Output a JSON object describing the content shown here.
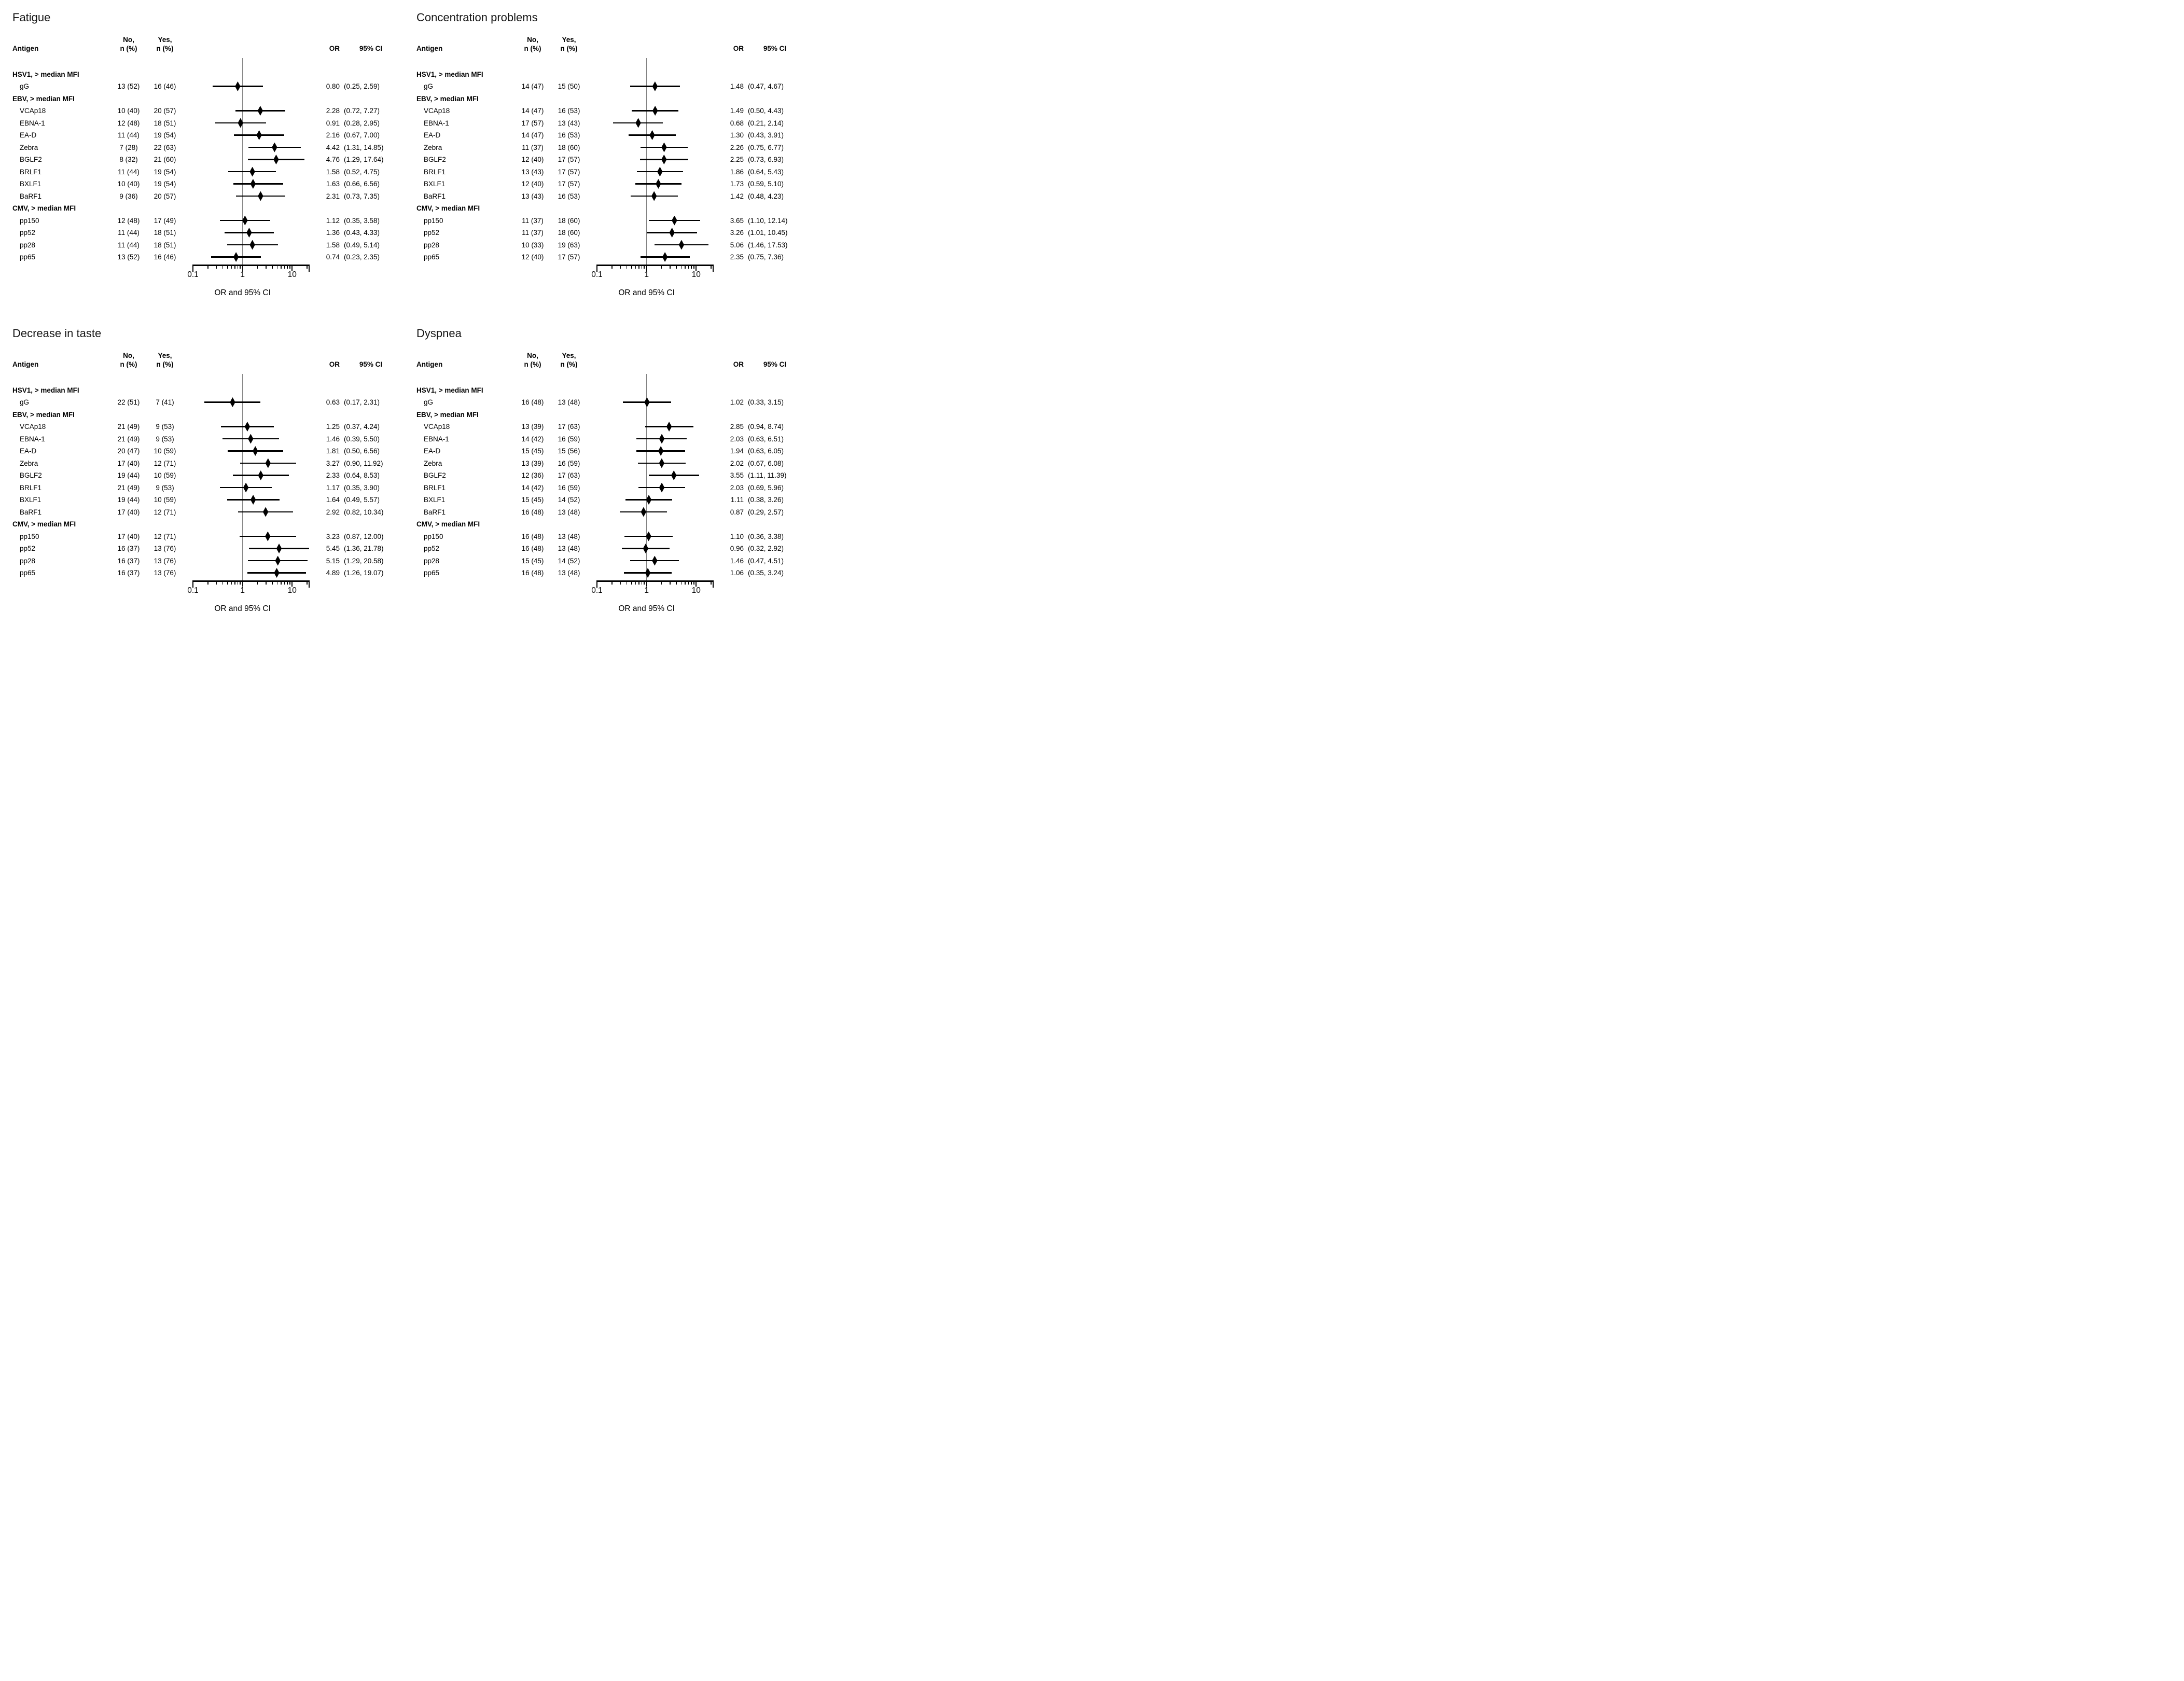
{
  "chart_data": {
    "type": "forest",
    "x_axis": {
      "label": "OR and 95% CI",
      "scale": "log",
      "tick_values": [
        0.1,
        1,
        10
      ],
      "tick_labels": [
        "0.1",
        "1",
        "10"
      ],
      "minor_ticks": [
        0.2,
        0.3,
        0.4,
        0.5,
        0.6,
        0.7,
        0.8,
        0.9,
        2,
        3,
        4,
        5,
        6,
        7,
        8,
        9,
        20
      ],
      "range": [
        0.1,
        22
      ],
      "reference_line": 1
    },
    "columns": {
      "antigen": "Antigen",
      "no_line1": "No,",
      "yes_line1": "Yes,",
      "n_pct": "n (%)",
      "or": "OR",
      "ci": "95% CI"
    },
    "panels": [
      {
        "title": "Fatigue",
        "rows": [
          {
            "group": "HSV1, > median MFI"
          },
          {
            "antigen": "gG",
            "no": "13 (52)",
            "yes": "16 (46)",
            "or": "0.80",
            "ci": "(0.25, 2.59)"
          },
          {
            "group": "EBV, > median MFI"
          },
          {
            "antigen": "VCAp18",
            "no": "10 (40)",
            "yes": "20 (57)",
            "or": "2.28",
            "ci": "(0.72, 7.27)"
          },
          {
            "antigen": "EBNA-1",
            "no": "12 (48)",
            "yes": "18 (51)",
            "or": "0.91",
            "ci": "(0.28, 2.95)"
          },
          {
            "antigen": "EA-D",
            "no": "11 (44)",
            "yes": "19 (54)",
            "or": "2.16",
            "ci": "(0.67, 7.00)"
          },
          {
            "antigen": "Zebra",
            "no": "7 (28)",
            "yes": "22 (63)",
            "or": "4.42",
            "ci": "(1.31, 14.85)"
          },
          {
            "antigen": "BGLF2",
            "no": "8 (32)",
            "yes": "21 (60)",
            "or": "4.76",
            "ci": "(1.29, 17.64)"
          },
          {
            "antigen": "BRLF1",
            "no": "11 (44)",
            "yes": "19 (54)",
            "or": "1.58",
            "ci": "(0.52, 4.75)"
          },
          {
            "antigen": "BXLF1",
            "no": "10 (40)",
            "yes": "19 (54)",
            "or": "1.63",
            "ci": "(0.66, 6.56)"
          },
          {
            "antigen": "BaRF1",
            "no": "9 (36)",
            "yes": "20 (57)",
            "or": "2.31",
            "ci": "(0.73, 7.35)"
          },
          {
            "group": "CMV, > median MFI"
          },
          {
            "antigen": "pp150",
            "no": "12 (48)",
            "yes": "17 (49)",
            "or": "1.12",
            "ci": "(0.35, 3.58)"
          },
          {
            "antigen": "pp52",
            "no": "11 (44)",
            "yes": "18 (51)",
            "or": "1.36",
            "ci": "(0.43, 4.33)"
          },
          {
            "antigen": "pp28",
            "no": "11 (44)",
            "yes": "18 (51)",
            "or": "1.58",
            "ci": "(0.49, 5.14)"
          },
          {
            "antigen": "pp65",
            "no": "13 (52)",
            "yes": "16 (46)",
            "or": "0.74",
            "ci": "(0.23, 2.35)"
          }
        ]
      },
      {
        "title": "Concentration problems",
        "rows": [
          {
            "group": "HSV1, > median MFI"
          },
          {
            "antigen": "gG",
            "no": "14 (47)",
            "yes": "15 (50)",
            "or": "1.48",
            "ci": "(0.47, 4.67)"
          },
          {
            "group": "EBV, > median MFI"
          },
          {
            "antigen": "VCAp18",
            "no": "14 (47)",
            "yes": "16 (53)",
            "or": "1.49",
            "ci": "(0.50, 4.43)"
          },
          {
            "antigen": "EBNA-1",
            "no": "17 (57)",
            "yes": "13 (43)",
            "or": "0.68",
            "ci": "(0.21, 2.14)"
          },
          {
            "antigen": "EA-D",
            "no": "14 (47)",
            "yes": "16 (53)",
            "or": "1.30",
            "ci": "(0.43, 3.91)"
          },
          {
            "antigen": "Zebra",
            "no": "11 (37)",
            "yes": "18 (60)",
            "or": "2.26",
            "ci": "(0.75, 6.77)"
          },
          {
            "antigen": "BGLF2",
            "no": "12 (40)",
            "yes": "17 (57)",
            "or": "2.25",
            "ci": "(0.73, 6.93)"
          },
          {
            "antigen": "BRLF1",
            "no": "13 (43)",
            "yes": "17 (57)",
            "or": "1.86",
            "ci": "(0.64, 5.43)"
          },
          {
            "antigen": "BXLF1",
            "no": "12 (40)",
            "yes": "17 (57)",
            "or": "1.73",
            "ci": "(0.59, 5.10)"
          },
          {
            "antigen": "BaRF1",
            "no": "13 (43)",
            "yes": "16 (53)",
            "or": "1.42",
            "ci": "(0.48, 4.23)"
          },
          {
            "group": "CMV, > median MFI"
          },
          {
            "antigen": "pp150",
            "no": "11 (37)",
            "yes": "18 (60)",
            "or": "3.65",
            "ci": "(1.10, 12.14)"
          },
          {
            "antigen": "pp52",
            "no": "11 (37)",
            "yes": "18 (60)",
            "or": "3.26",
            "ci": "(1.01, 10.45)"
          },
          {
            "antigen": "pp28",
            "no": "10 (33)",
            "yes": "19 (63)",
            "or": "5.06",
            "ci": "(1.46, 17.53)"
          },
          {
            "antigen": "pp65",
            "no": "12 (40)",
            "yes": "17 (57)",
            "or": "2.35",
            "ci": "(0.75, 7.36)"
          }
        ]
      },
      {
        "title": "Decrease in taste",
        "rows": [
          {
            "group": "HSV1, > median MFI"
          },
          {
            "antigen": "gG",
            "no": "22 (51)",
            "yes": "7 (41)",
            "or": "0.63",
            "ci": "(0.17, 2.31)"
          },
          {
            "group": "EBV, > median MFI"
          },
          {
            "antigen": "VCAp18",
            "no": "21 (49)",
            "yes": "9 (53)",
            "or": "1.25",
            "ci": "(0.37, 4.24)"
          },
          {
            "antigen": "EBNA-1",
            "no": "21 (49)",
            "yes": "9 (53)",
            "or": "1.46",
            "ci": "(0.39, 5.50)"
          },
          {
            "antigen": "EA-D",
            "no": "20 (47)",
            "yes": "10 (59)",
            "or": "1.81",
            "ci": "(0.50, 6.56)"
          },
          {
            "antigen": "Zebra",
            "no": "17 (40)",
            "yes": "12 (71)",
            "or": "3.27",
            "ci": "(0.90, 11.92)"
          },
          {
            "antigen": "BGLF2",
            "no": "19 (44)",
            "yes": "10 (59)",
            "or": "2.33",
            "ci": "(0.64, 8.53)"
          },
          {
            "antigen": "BRLF1",
            "no": "21 (49)",
            "yes": "9 (53)",
            "or": "1.17",
            "ci": "(0.35, 3.90)"
          },
          {
            "antigen": "BXLF1",
            "no": "19 (44)",
            "yes": "10 (59)",
            "or": "1.64",
            "ci": "(0.49, 5.57)"
          },
          {
            "antigen": "BaRF1",
            "no": "17 (40)",
            "yes": "12 (71)",
            "or": "2.92",
            "ci": "(0.82, 10.34)"
          },
          {
            "group": "CMV, > median MFI"
          },
          {
            "antigen": "pp150",
            "no": "17 (40)",
            "yes": "12 (71)",
            "or": "3.23",
            "ci": "(0.87, 12.00)"
          },
          {
            "antigen": "pp52",
            "no": "16 (37)",
            "yes": "13 (76)",
            "or": "5.45",
            "ci": "(1.36, 21.78)"
          },
          {
            "antigen": "pp28",
            "no": "16 (37)",
            "yes": "13 (76)",
            "or": "5.15",
            "ci": "(1.29, 20.58)"
          },
          {
            "antigen": "pp65",
            "no": "16 (37)",
            "yes": "13 (76)",
            "or": "4.89",
            "ci": "(1.26, 19.07)"
          }
        ]
      },
      {
        "title": "Dyspnea",
        "rows": [
          {
            "group": "HSV1, > median MFI"
          },
          {
            "antigen": "gG",
            "no": "16 (48)",
            "yes": "13 (48)",
            "or": "1.02",
            "ci": "(0.33, 3.15)"
          },
          {
            "group": "EBV, > median MFI"
          },
          {
            "antigen": "VCAp18",
            "no": "13 (39)",
            "yes": "17 (63)",
            "or": "2.85",
            "ci": "(0.94, 8.74)"
          },
          {
            "antigen": "EBNA-1",
            "no": "14 (42)",
            "yes": "16 (59)",
            "or": "2.03",
            "ci": "(0.63, 6.51)"
          },
          {
            "antigen": "EA-D",
            "no": "15 (45)",
            "yes": "15 (56)",
            "or": "1.94",
            "ci": "(0.63, 6.05)"
          },
          {
            "antigen": "Zebra",
            "no": "13 (39)",
            "yes": "16 (59)",
            "or": "2.02",
            "ci": "(0.67, 6.08)"
          },
          {
            "antigen": "BGLF2",
            "no": "12 (36)",
            "yes": "17 (63)",
            "or": "3.55",
            "ci": "(1.11, 11.39)"
          },
          {
            "antigen": "BRLF1",
            "no": "14 (42)",
            "yes": "16 (59)",
            "or": "2.03",
            "ci": "(0.69, 5.96)"
          },
          {
            "antigen": "BXLF1",
            "no": "15 (45)",
            "yes": "14 (52)",
            "or": "1.11",
            "ci": "(0.38, 3.26)"
          },
          {
            "antigen": "BaRF1",
            "no": "16 (48)",
            "yes": "13 (48)",
            "or": "0.87",
            "ci": "(0.29, 2.57)"
          },
          {
            "group": "CMV, > median MFI"
          },
          {
            "antigen": "pp150",
            "no": "16 (48)",
            "yes": "13 (48)",
            "or": "1.10",
            "ci": "(0.36, 3.38)"
          },
          {
            "antigen": "pp52",
            "no": "16 (48)",
            "yes": "13 (48)",
            "or": "0.96",
            "ci": "(0.32, 2.92)"
          },
          {
            "antigen": "pp28",
            "no": "15 (45)",
            "yes": "14 (52)",
            "or": "1.46",
            "ci": "(0.47, 4.51)"
          },
          {
            "antigen": "pp65",
            "no": "16 (48)",
            "yes": "13 (48)",
            "or": "1.06",
            "ci": "(0.35, 3.24)"
          }
        ]
      }
    ]
  }
}
